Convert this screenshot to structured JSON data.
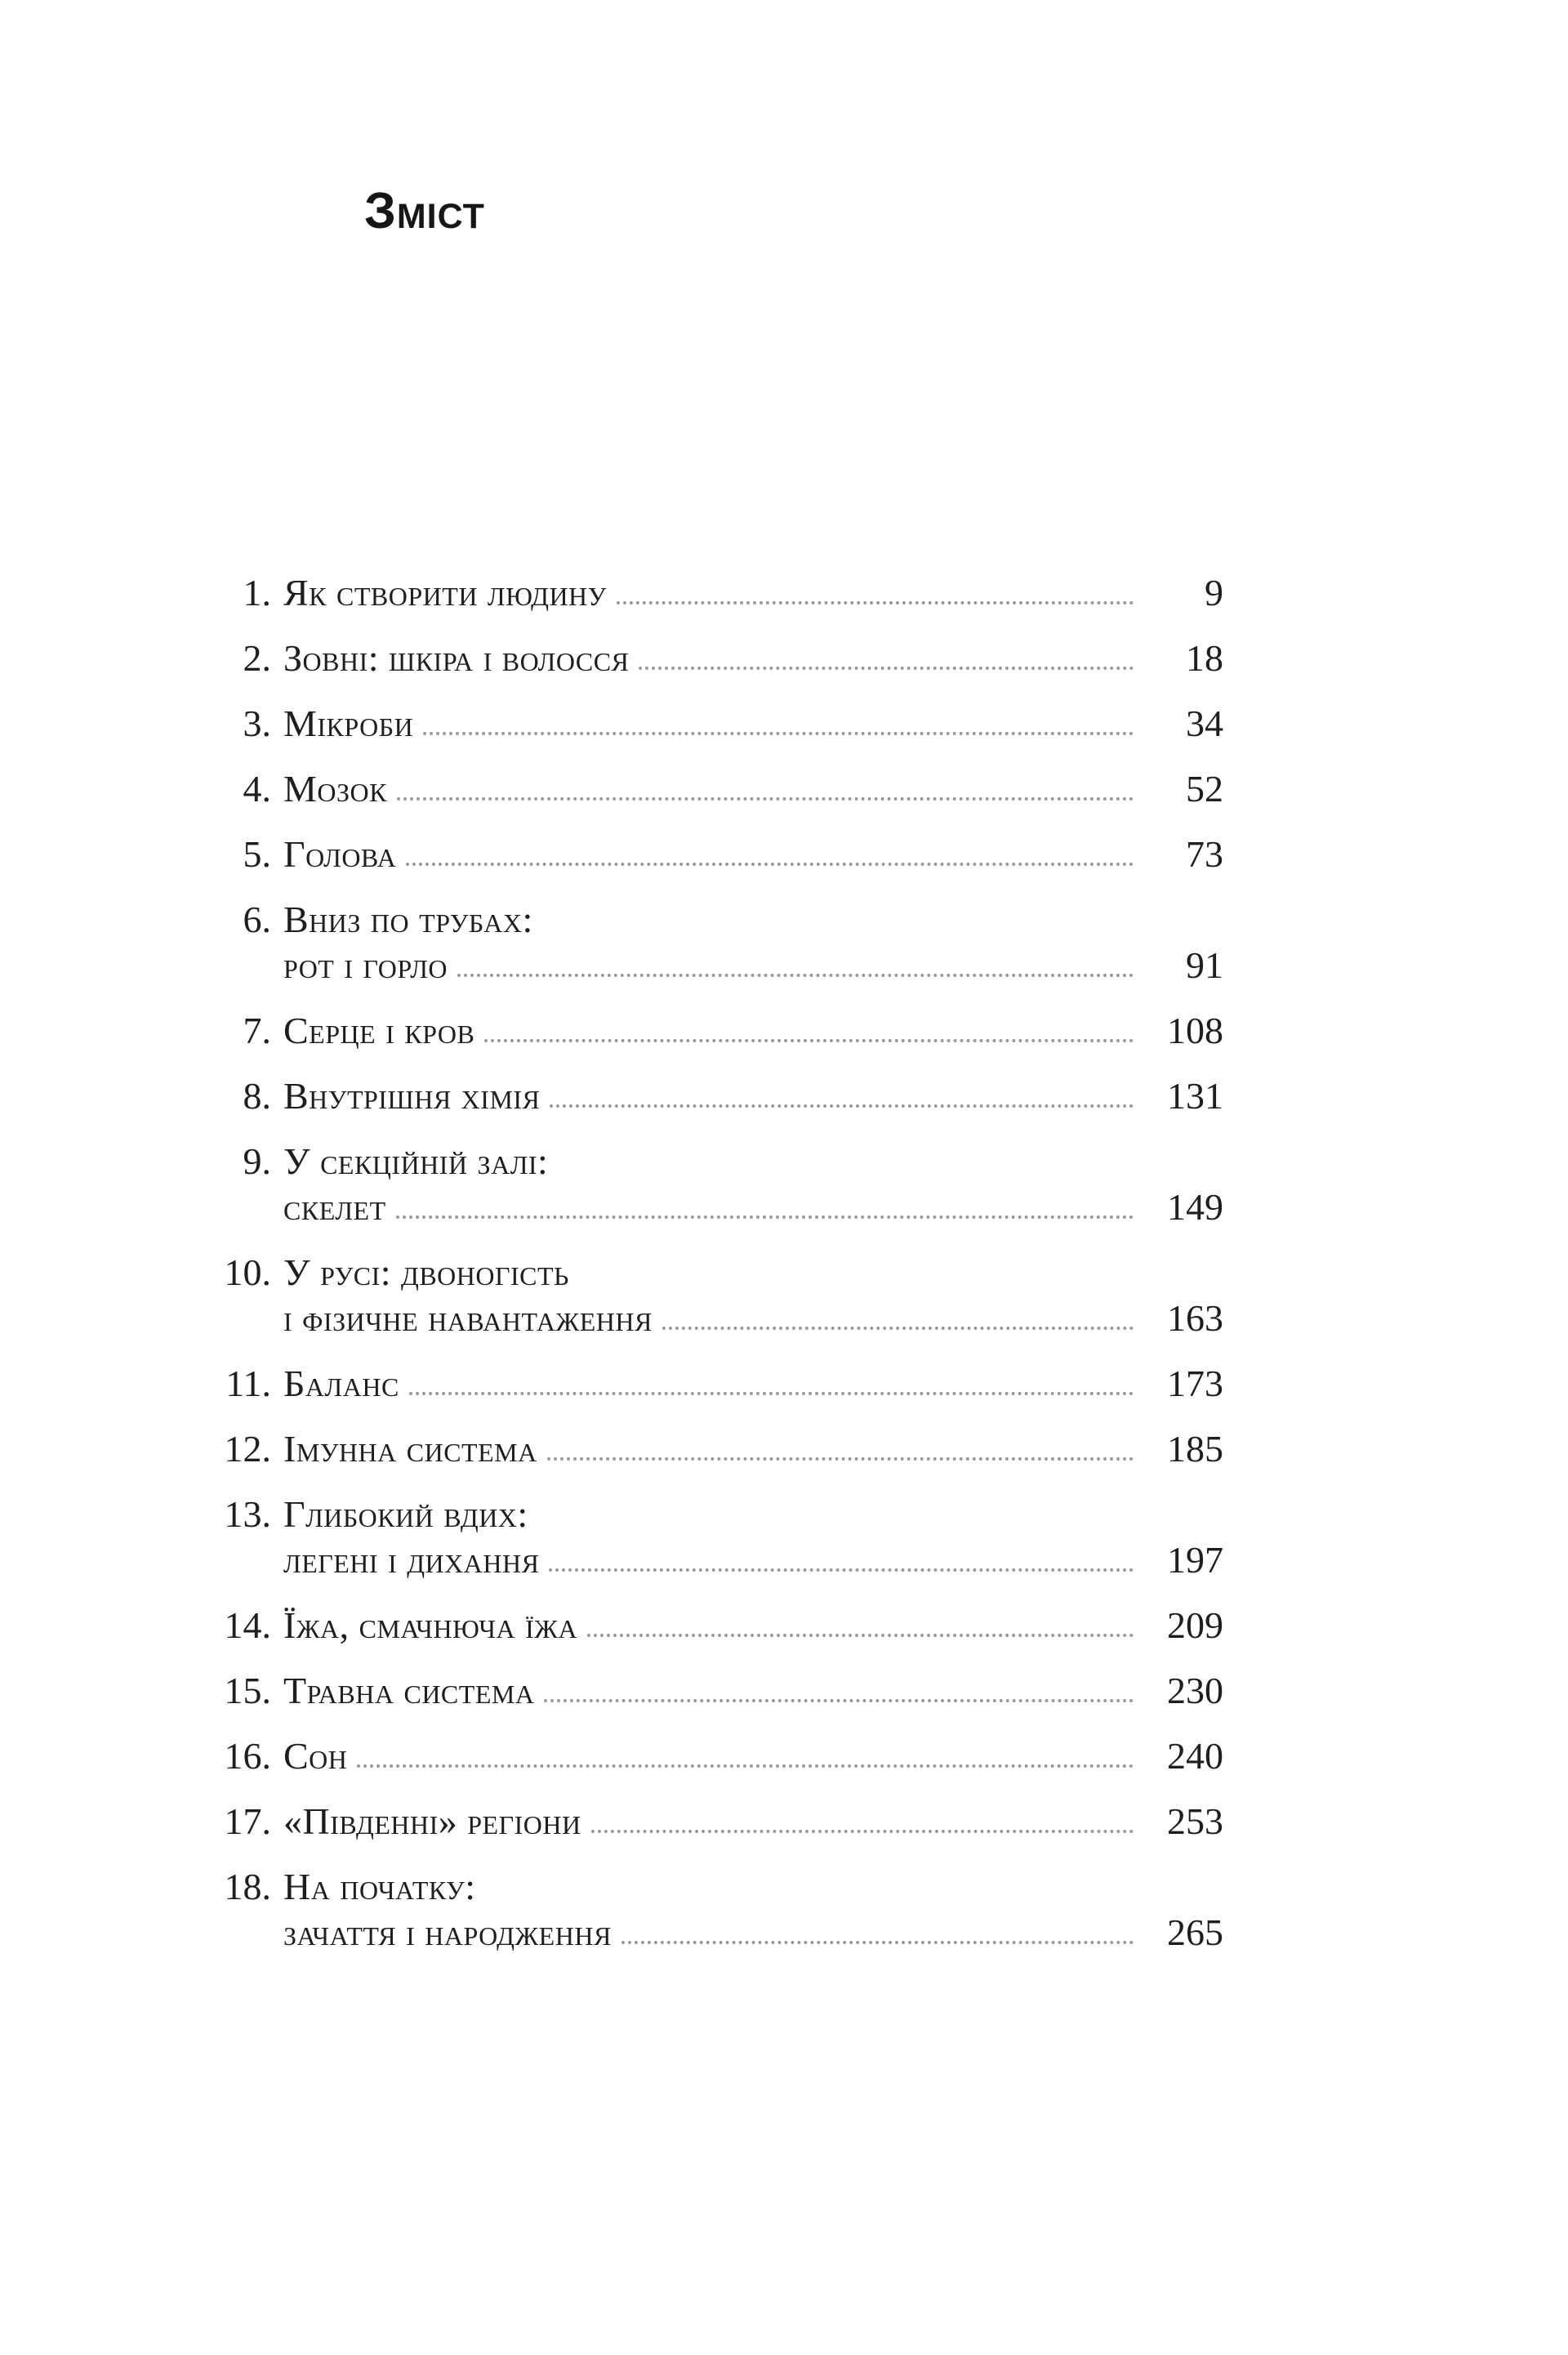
{
  "page": {
    "title": "Зміст",
    "background_color": "#ffffff",
    "text_color": "#1e1e1e",
    "leader_dot_color": "#9a9a9a"
  },
  "toc": {
    "entries": [
      {
        "number": "1.",
        "line1": "Як створити людину",
        "page": "9"
      },
      {
        "number": "2.",
        "line1": "Зовні: шкіра і волосся",
        "page": "18"
      },
      {
        "number": "3.",
        "line1": "Мікроби",
        "page": "34"
      },
      {
        "number": "4.",
        "line1": "Мозок",
        "page": "52"
      },
      {
        "number": "5.",
        "line1": "Голова",
        "page": "73"
      },
      {
        "number": "6.",
        "line1": "Вниз по трубах:",
        "line2": "рот і горло",
        "page": "91"
      },
      {
        "number": "7.",
        "line1": "Серце і кров",
        "page": "108"
      },
      {
        "number": "8.",
        "line1": "Внутрішня хімія",
        "page": "131"
      },
      {
        "number": "9.",
        "line1": "У секційній залі:",
        "line2": "скелет",
        "page": "149"
      },
      {
        "number": "10.",
        "line1": "У русі: двоногість",
        "line2": "і фізичне навантаження",
        "page": "163"
      },
      {
        "number": "11.",
        "line1": "Баланс",
        "page": "173"
      },
      {
        "number": "12.",
        "line1": "Імунна система",
        "page": "185"
      },
      {
        "number": "13.",
        "line1": "Глибокий вдих:",
        "line2": "легені і дихання",
        "page": "197"
      },
      {
        "number": "14.",
        "line1": "Їжа, смачнюча їжа",
        "page": "209"
      },
      {
        "number": "15.",
        "line1": "Травна система",
        "page": "230"
      },
      {
        "number": "16.",
        "line1": "Сон",
        "page": "240"
      },
      {
        "number": "17.",
        "line1": "«Південні» регіони",
        "page": "253"
      },
      {
        "number": "18.",
        "line1": "На початку:",
        "line2": "зачаття і народження",
        "page": "265"
      }
    ]
  }
}
